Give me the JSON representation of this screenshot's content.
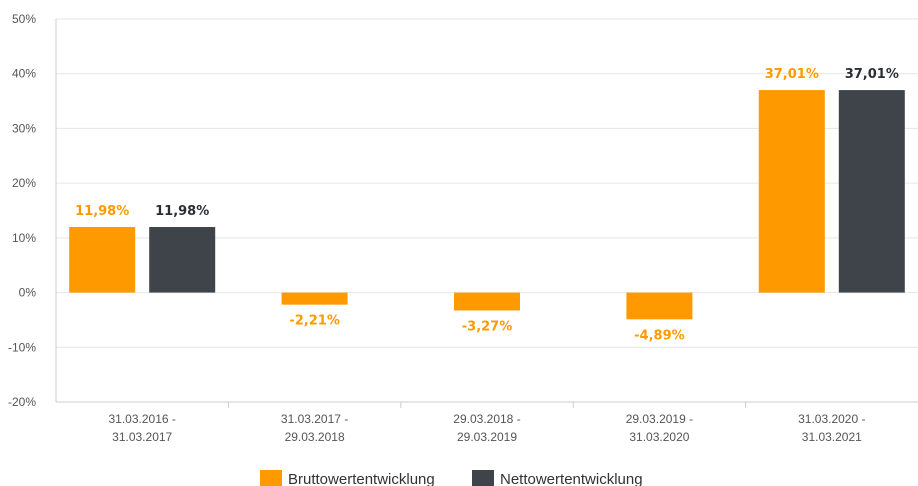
{
  "chart_data": {
    "type": "bar",
    "categories": [
      [
        "31.03.2016 -",
        "31.03.2017"
      ],
      [
        "31.03.2017 -",
        "29.03.2018"
      ],
      [
        "29.03.2018 -",
        "29.03.2019"
      ],
      [
        "29.03.2019 -",
        "31.03.2020"
      ],
      [
        "31.03.2020 -",
        "31.03.2021"
      ]
    ],
    "series": [
      {
        "name": "Bruttowertentwicklung",
        "color": "#ff9900",
        "values": [
          11.98,
          -2.21,
          -3.27,
          -4.89,
          37.01
        ],
        "labels": [
          "11,98%",
          "-2,21%",
          "-3,27%",
          "-4,89%",
          "37,01%"
        ]
      },
      {
        "name": "Nettowertentwicklung",
        "color": "#3f444b",
        "values": [
          11.98,
          null,
          null,
          null,
          37.01
        ],
        "labels": [
          "11,98%",
          "",
          "",
          "",
          "37,01%"
        ]
      }
    ],
    "ylim": [
      -20,
      50
    ],
    "yticks": [
      50,
      40,
      30,
      20,
      10,
      0,
      -10,
      -20
    ],
    "ytick_labels": [
      "50%",
      "40%",
      "30%",
      "20%",
      "10%",
      "0%",
      "-10%",
      "-20%"
    ],
    "grid": true,
    "legend_position": "bottom-center"
  }
}
